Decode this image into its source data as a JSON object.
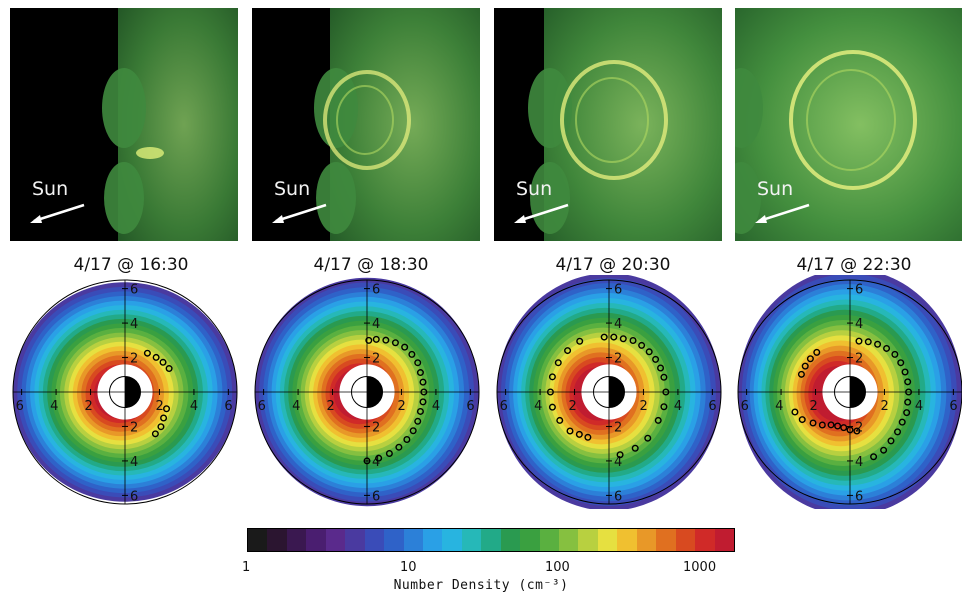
{
  "chart_data": {
    "type": "polar-density",
    "panels": [
      {
        "time_label": "4/17 @ 16:30",
        "sun_label": "Sun",
        "image_brightness": 0.45
      },
      {
        "time_label": "4/17 @ 18:30",
        "sun_label": "Sun",
        "image_brightness": 0.55
      },
      {
        "time_label": "4/17 @ 20:30",
        "sun_label": "Sun",
        "image_brightness": 0.65
      },
      {
        "time_label": "4/17 @ 22:30",
        "sun_label": "Sun",
        "image_brightness": 0.8
      }
    ],
    "polar_axis_ticks": [
      "2",
      "4",
      "6"
    ],
    "polar_rmax": 6.5,
    "colorbar": {
      "title": "Number Density (cm⁻³)",
      "tick_labels": [
        "1",
        "10",
        "100",
        "1000"
      ],
      "scale": "log",
      "range": [
        1,
        2000
      ]
    }
  },
  "colors": {
    "colormap": [
      "#1a1a1a",
      "#2b1530",
      "#3a1850",
      "#4a1e70",
      "#5a2a8c",
      "#4a3aa0",
      "#3a4cb8",
      "#2f62c8",
      "#2c80d8",
      "#2aa0e6",
      "#28b4e0",
      "#26b8b8",
      "#22aa88",
      "#2a9a50",
      "#3aa040",
      "#5ab040",
      "#86c040",
      "#b8d040",
      "#e6e040",
      "#f0c030",
      "#e89828",
      "#e07020",
      "#d84a20",
      "#d02a28",
      "#c01c30"
    ],
    "circle_marker": "#000000",
    "green_image": "#4fa84a"
  }
}
